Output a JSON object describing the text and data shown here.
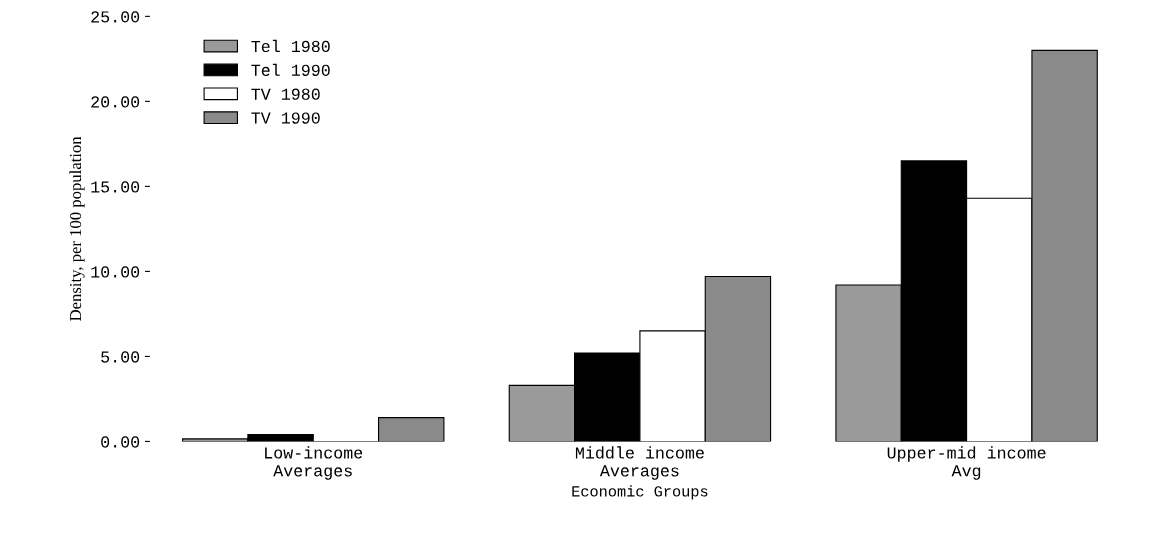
{
  "chart_data": {
    "type": "bar",
    "xlabel": "Economic Groups",
    "ylabel": "Density, per 100 population",
    "categories": [
      "Low-income\nAverages",
      "Middle income\nAverages",
      "Upper-mid income\nAvg"
    ],
    "series": [
      {
        "name": "Tel 1980",
        "color": "#9a9a9a",
        "values": [
          0.15,
          3.3,
          9.2
        ]
      },
      {
        "name": "Tel 1990",
        "color": "#000000",
        "values": [
          0.4,
          5.2,
          16.5
        ]
      },
      {
        "name": "TV 1980",
        "color": "#ffffff",
        "values": [
          null,
          6.5,
          14.3
        ]
      },
      {
        "name": "TV 1990",
        "color": "#8a8a8a",
        "values": [
          1.4,
          9.7,
          23.0
        ]
      }
    ],
    "ylim": [
      0,
      25
    ],
    "yticks": [
      {
        "value": 0,
        "label": "0.00"
      },
      {
        "value": 5,
        "label": "5.00"
      },
      {
        "value": 10,
        "label": "10.00"
      },
      {
        "value": 15,
        "label": "15.00"
      },
      {
        "value": 20,
        "label": "20.00"
      },
      {
        "value": 25,
        "label": "25.00"
      }
    ],
    "grid": false,
    "legend": "top left"
  }
}
